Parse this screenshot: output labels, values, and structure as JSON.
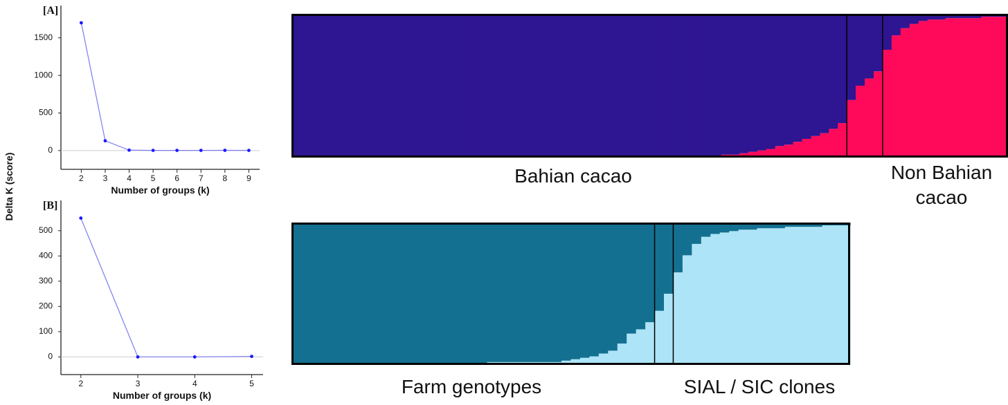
{
  "y_label": "Delta K (score)",
  "chart_data": [
    {
      "type": "line",
      "panel": "[A]",
      "xlabel": "Number of groups (k)",
      "x": [
        2,
        3,
        4,
        5,
        6,
        7,
        8,
        9
      ],
      "values": [
        1700,
        130,
        5,
        2,
        2,
        2,
        3,
        2
      ],
      "color": "#7b7bf0",
      "marker_color": "#1a1aff",
      "xlim": [
        1.15,
        9.45
      ],
      "xticks": [
        2,
        3,
        4,
        5,
        6,
        7,
        8,
        9
      ],
      "ylim": [
        -250,
        1930
      ],
      "yticks": [
        0,
        500,
        1000,
        1500
      ],
      "hline": 0
    },
    {
      "type": "line",
      "panel": "[B]",
      "xlabel": "Number of groups (k)",
      "x": [
        2,
        3,
        4,
        5
      ],
      "values": [
        550,
        0,
        0,
        2
      ],
      "color": "#7b7bf0",
      "marker_color": "#1a1aff",
      "xlim": [
        1.65,
        5.2
      ],
      "xticks": [
        2,
        3,
        4,
        5
      ],
      "ylim": [
        -70,
        620
      ],
      "yticks": [
        0,
        100,
        200,
        300,
        400,
        500
      ],
      "hline": 0
    },
    {
      "type": "structure",
      "group_labels": [
        "Bahian cacao",
        "Non Bahian cacao"
      ],
      "separators": [
        62,
        66
      ],
      "series": [
        {
          "color": "#ff0a5a",
          "values": [
            0,
            0,
            0,
            0,
            0,
            0,
            0,
            0,
            0,
            0,
            0,
            0,
            0,
            0,
            0,
            0,
            0,
            0,
            0,
            0,
            0,
            0,
            0,
            0,
            0,
            0,
            0,
            0,
            0,
            0,
            0,
            0,
            0,
            0,
            0,
            0,
            0,
            0,
            0,
            0,
            0,
            0,
            0,
            0,
            0,
            0,
            0.01,
            0.01,
            0.02,
            0.02,
            0.03,
            0.04,
            0.05,
            0.06,
            0.08,
            0.09,
            0.11,
            0.13,
            0.15,
            0.17,
            0.2,
            0.24,
            0.4,
            0.5,
            0.55,
            0.6,
            0.75,
            0.85,
            0.9,
            0.93,
            0.95,
            0.96,
            0.96,
            0.97,
            0.97,
            0.97,
            0.97,
            0.98,
            0.98,
            0.98
          ]
        },
        {
          "color": "#2e1591",
          "values": [
            1,
            1,
            1,
            1,
            1,
            1,
            1,
            1,
            1,
            1,
            1,
            1,
            1,
            1,
            1,
            1,
            1,
            1,
            1,
            1,
            1,
            1,
            1,
            1,
            1,
            1,
            1,
            1,
            1,
            1,
            1,
            1,
            1,
            1,
            1,
            1,
            1,
            1,
            1,
            1,
            1,
            1,
            1,
            1,
            1,
            1,
            0.99,
            0.99,
            0.98,
            0.98,
            0.97,
            0.96,
            0.95,
            0.94,
            0.92,
            0.91,
            0.89,
            0.87,
            0.85,
            0.83,
            0.8,
            0.76,
            0.6,
            0.5,
            0.45,
            0.4,
            0.25,
            0.15,
            0.1,
            0.07,
            0.05,
            0.04,
            0.04,
            0.03,
            0.03,
            0.03,
            0.03,
            0.02,
            0.02,
            0.02
          ]
        }
      ]
    },
    {
      "type": "structure",
      "group_labels": [
        "Farm genotypes",
        "SIAL / SIC clones"
      ],
      "separators": [
        39,
        41
      ],
      "series": [
        {
          "color": "#aee4f8",
          "values": [
            0,
            0,
            0,
            0.01,
            0.01,
            0.01,
            0.01,
            0.01,
            0.01,
            0.01,
            0.01,
            0.01,
            0.01,
            0.01,
            0.01,
            0.01,
            0.01,
            0.01,
            0.01,
            0.01,
            0.01,
            0.02,
            0.02,
            0.02,
            0.02,
            0.02,
            0.02,
            0.02,
            0.02,
            0.03,
            0.04,
            0.05,
            0.06,
            0.08,
            0.1,
            0.15,
            0.22,
            0.25,
            0.3,
            0.38,
            0.5,
            0.65,
            0.77,
            0.85,
            0.9,
            0.92,
            0.93,
            0.94,
            0.95,
            0.95,
            0.96,
            0.96,
            0.96,
            0.97,
            0.97,
            0.97,
            0.97,
            0.98,
            0.98,
            0.98
          ]
        },
        {
          "color": "#147090",
          "values": [
            1,
            1,
            1,
            0.99,
            0.99,
            0.99,
            0.99,
            0.99,
            0.99,
            0.99,
            0.99,
            0.99,
            0.99,
            0.99,
            0.99,
            0.99,
            0.99,
            0.99,
            0.99,
            0.99,
            0.99,
            0.98,
            0.98,
            0.98,
            0.98,
            0.98,
            0.98,
            0.98,
            0.98,
            0.97,
            0.96,
            0.95,
            0.94,
            0.92,
            0.9,
            0.85,
            0.78,
            0.75,
            0.7,
            0.62,
            0.5,
            0.35,
            0.23,
            0.15,
            0.1,
            0.08,
            0.07,
            0.06,
            0.05,
            0.05,
            0.04,
            0.04,
            0.04,
            0.03,
            0.03,
            0.03,
            0.03,
            0.02,
            0.02,
            0.02
          ]
        }
      ]
    }
  ]
}
